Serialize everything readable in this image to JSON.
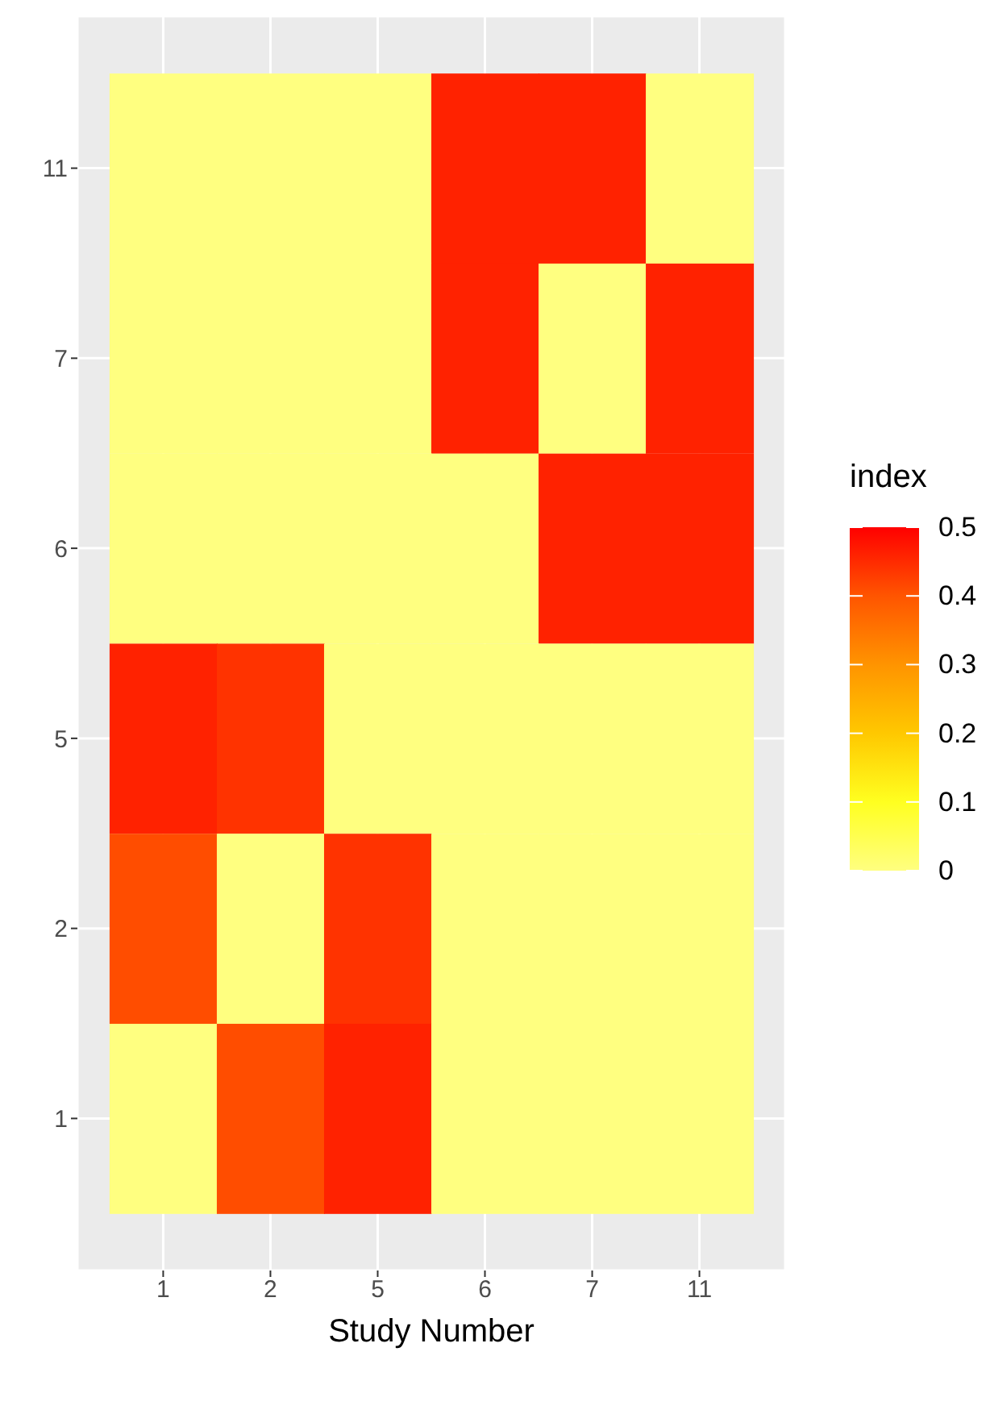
{
  "chart_data": {
    "type": "heatmap",
    "xlabel": "Study Number",
    "clabel": "index",
    "categories": [
      "1",
      "2",
      "5",
      "6",
      "7",
      "11"
    ],
    "y_categories": [
      "11",
      "7",
      "6",
      "5",
      "2",
      "1"
    ],
    "cells": [
      [
        0,
        0,
        0,
        0.46,
        0.46,
        0
      ],
      [
        0,
        0,
        0,
        0.46,
        0,
        0.46
      ],
      [
        0,
        0,
        0,
        0,
        0.46,
        0.46
      ],
      [
        0.46,
        0.44,
        0,
        0,
        0,
        0
      ],
      [
        0.41,
        0,
        0.44,
        0,
        0,
        0
      ],
      [
        0,
        0.41,
        0.46,
        0,
        0,
        0
      ]
    ],
    "clim": [
      0,
      0.5
    ],
    "cticks": [
      0,
      0.1,
      0.2,
      0.3,
      0.4,
      0.5
    ],
    "grid": true
  }
}
